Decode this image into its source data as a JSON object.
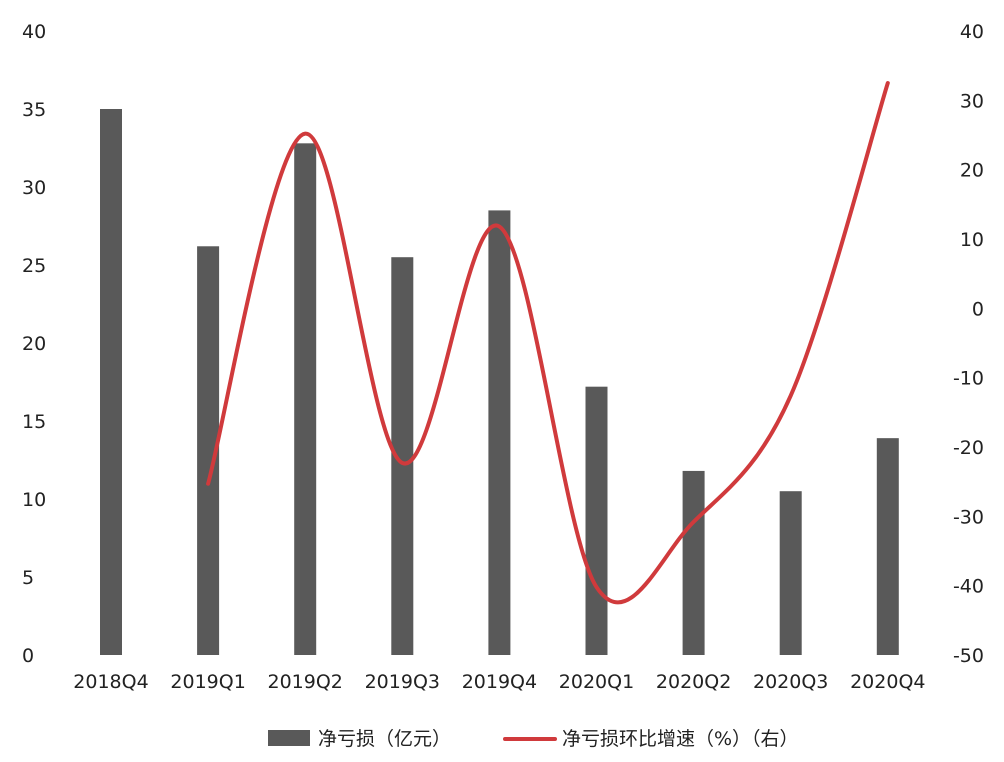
{
  "chart_data": {
    "type": "bar",
    "categories": [
      "2018Q4",
      "2019Q1",
      "2019Q2",
      "2019Q3",
      "2019Q4",
      "2020Q1",
      "2020Q2",
      "2020Q3",
      "2020Q4"
    ],
    "series": [
      {
        "name": "净亏损（亿元）",
        "type": "bar",
        "axis": "left",
        "color": "#595959",
        "values": [
          35.0,
          26.2,
          32.8,
          25.5,
          28.5,
          17.2,
          11.8,
          10.5,
          13.9
        ]
      },
      {
        "name": "净亏损环比增速（%）（右）",
        "type": "line",
        "axis": "right",
        "smooth": true,
        "color": "#d03a3c",
        "values": [
          null,
          -25.3,
          25.2,
          -22.3,
          11.8,
          -40.2,
          -30.8,
          -12.6,
          32.5
        ]
      }
    ],
    "y_left": {
      "min": 0,
      "max": 40,
      "ticks": [
        0,
        5,
        10,
        15,
        20,
        25,
        30,
        35,
        40
      ]
    },
    "y_right": {
      "min": -50,
      "max": 40,
      "ticks": [
        -50,
        -40,
        -30,
        -20,
        -10,
        0,
        10,
        20,
        30,
        40
      ]
    },
    "grid": false,
    "legend": "bottom"
  }
}
